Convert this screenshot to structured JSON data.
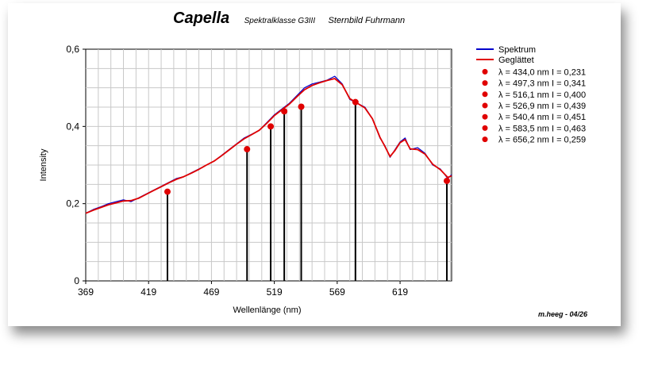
{
  "title": "Capella",
  "subtitle": "Spektralklasse G3III",
  "subtitle2": "Sternbild Fuhrmann",
  "credit": "m.heeg - 04/26",
  "colors": {
    "spectrum": "#0000cc",
    "smoothed": "#e00000",
    "marker": "#e00000",
    "line": "#000000"
  },
  "chart_data": {
    "type": "line",
    "xlabel": "Wellenlänge (nm)",
    "ylabel": "Intensity",
    "xlim": [
      369,
      660
    ],
    "ylim": [
      0,
      0.6
    ],
    "xticks": [
      369,
      419,
      469,
      519,
      569,
      619
    ],
    "yticks": [
      0,
      0.2,
      0.4,
      0.6
    ],
    "ytick_labels": [
      "0",
      "0,2",
      "0,4",
      "0,6"
    ],
    "grid": true,
    "legend_position": "right",
    "series": [
      {
        "name": "Spektrum",
        "style": "line",
        "x": [
          369,
          375,
          381,
          387,
          393,
          399,
          405,
          411,
          417,
          423,
          429,
          435,
          441,
          447,
          453,
          459,
          465,
          471,
          477,
          483,
          489,
          495,
          501,
          507,
          513,
          519,
          525,
          531,
          537,
          543,
          549,
          555,
          561,
          567,
          573,
          579,
          585,
          591,
          597,
          603,
          607,
          611,
          615,
          619,
          623,
          627,
          633,
          639,
          645,
          651,
          657,
          660
        ],
        "y": [
          0.175,
          0.185,
          0.192,
          0.2,
          0.205,
          0.21,
          0.205,
          0.215,
          0.225,
          0.235,
          0.245,
          0.255,
          0.265,
          0.27,
          0.28,
          0.29,
          0.3,
          0.31,
          0.325,
          0.34,
          0.355,
          0.37,
          0.38,
          0.39,
          0.41,
          0.43,
          0.445,
          0.46,
          0.48,
          0.5,
          0.51,
          0.515,
          0.52,
          0.53,
          0.51,
          0.47,
          0.46,
          0.45,
          0.42,
          0.37,
          0.35,
          0.32,
          0.34,
          0.36,
          0.37,
          0.34,
          0.345,
          0.33,
          0.3,
          0.29,
          0.265,
          0.275
        ]
      },
      {
        "name": "Geglättet",
        "style": "line",
        "x": [
          369,
          375,
          381,
          387,
          393,
          399,
          405,
          411,
          417,
          423,
          429,
          435,
          441,
          447,
          453,
          459,
          465,
          471,
          477,
          483,
          489,
          495,
          501,
          507,
          513,
          519,
          525,
          531,
          537,
          543,
          549,
          555,
          561,
          567,
          573,
          579,
          585,
          591,
          597,
          603,
          607,
          611,
          615,
          619,
          623,
          627,
          633,
          639,
          645,
          651,
          657,
          660
        ],
        "y": [
          0.175,
          0.183,
          0.19,
          0.197,
          0.202,
          0.207,
          0.208,
          0.214,
          0.224,
          0.234,
          0.244,
          0.254,
          0.263,
          0.27,
          0.279,
          0.289,
          0.3,
          0.31,
          0.324,
          0.339,
          0.354,
          0.368,
          0.379,
          0.39,
          0.408,
          0.428,
          0.443,
          0.458,
          0.477,
          0.495,
          0.506,
          0.513,
          0.519,
          0.524,
          0.508,
          0.472,
          0.46,
          0.448,
          0.42,
          0.372,
          0.348,
          0.322,
          0.338,
          0.358,
          0.366,
          0.342,
          0.34,
          0.328,
          0.302,
          0.288,
          0.268,
          0.272
        ]
      },
      {
        "name": "λ = 434,0 nm   I = 0,231",
        "style": "marker",
        "x": [
          434.0
        ],
        "y": [
          0.231
        ]
      },
      {
        "name": "λ = 497,3 nm   I = 0,341",
        "style": "marker",
        "x": [
          497.3
        ],
        "y": [
          0.341
        ]
      },
      {
        "name": "λ = 516,1 nm   I = 0,400",
        "style": "marker",
        "x": [
          516.1
        ],
        "y": [
          0.4
        ]
      },
      {
        "name": "λ = 526,9 nm   I = 0,439",
        "style": "marker",
        "x": [
          526.9
        ],
        "y": [
          0.439
        ]
      },
      {
        "name": "λ = 540,4 nm   I = 0,451",
        "style": "marker",
        "x": [
          540.4
        ],
        "y": [
          0.451
        ]
      },
      {
        "name": "λ = 583,5 nm   I = 0,463",
        "style": "marker",
        "x": [
          583.5
        ],
        "y": [
          0.463
        ]
      },
      {
        "name": "λ = 656,2 nm   I = 0,259",
        "style": "marker",
        "x": [
          656.2
        ],
        "y": [
          0.259
        ]
      }
    ]
  }
}
